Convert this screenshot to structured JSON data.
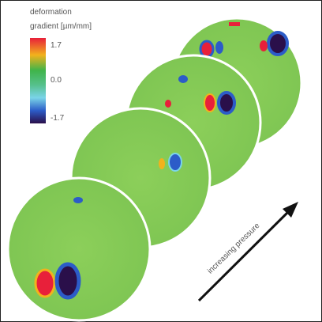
{
  "legend": {
    "title": [
      "deformation",
      "gradient [µm/mm]"
    ],
    "ticks": [
      "1.7",
      "0.0",
      "-1.7"
    ]
  },
  "arrow_label": "increasing pressure"
}
